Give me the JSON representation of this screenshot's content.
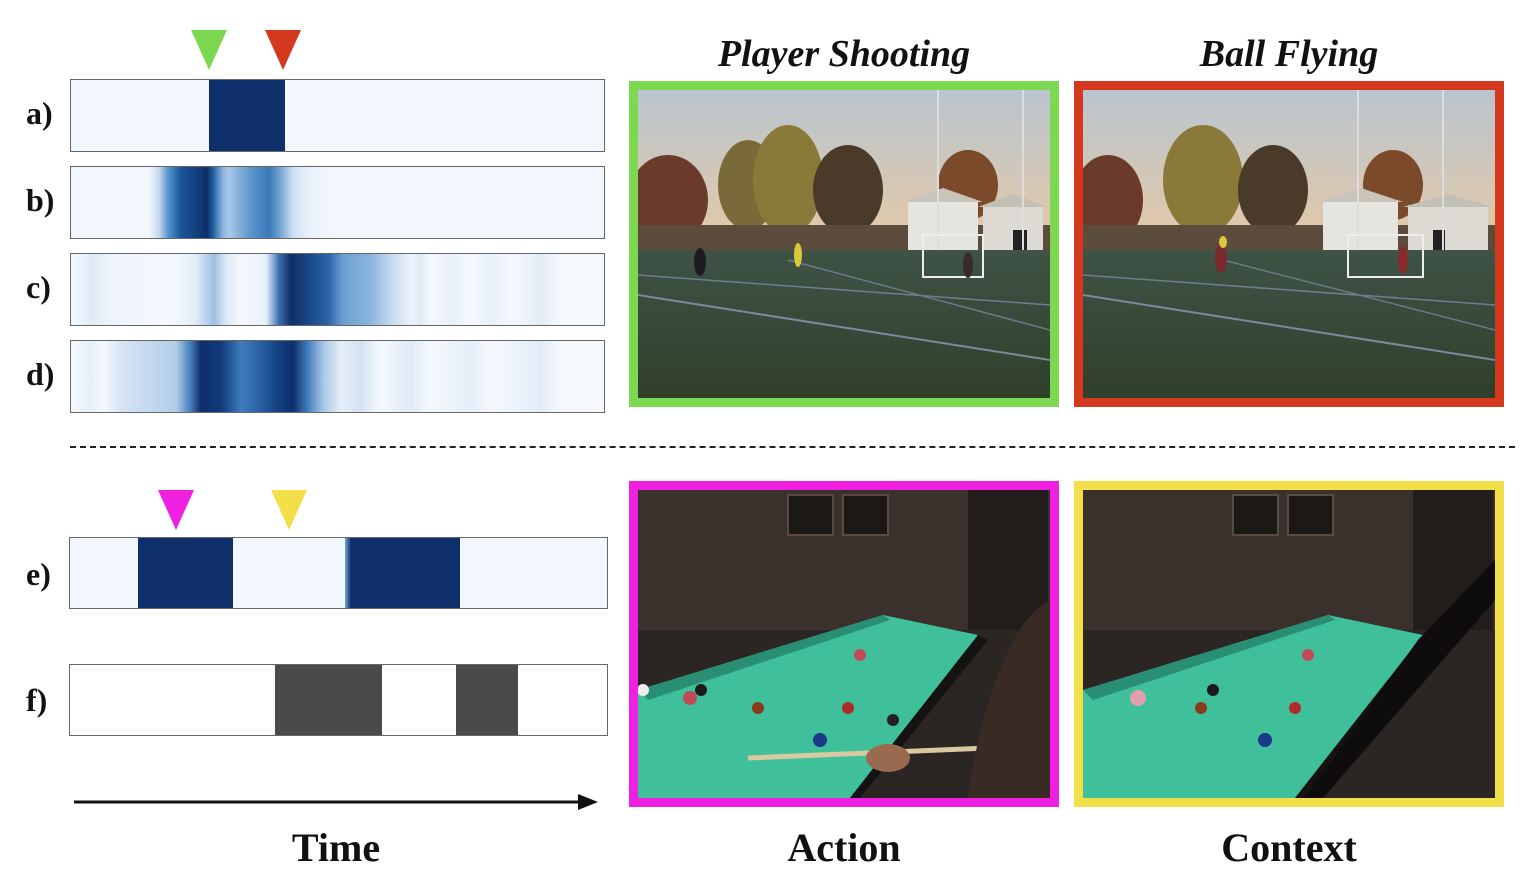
{
  "colors": {
    "dark_blue": "#0f2f6a",
    "light_blue_bg": "#f2f7fd",
    "gray_segment": "#4a4a4a",
    "green": "#7dd851",
    "red": "#d4391e",
    "magenta": "#f020e0",
    "yellow": "#f3df4a"
  },
  "top": {
    "rows": [
      {
        "label": "a)"
      },
      {
        "label": "b)"
      },
      {
        "label": "c)"
      },
      {
        "label": "d)"
      }
    ],
    "markers": [
      {
        "color": "green",
        "semantic": "shooting-marker"
      },
      {
        "color": "red",
        "semantic": "ball-flying-marker"
      }
    ],
    "frames": [
      {
        "title": "Player Shooting",
        "border_color": "green",
        "scene": "soccer field at sunset"
      },
      {
        "title": "Ball Flying",
        "border_color": "red",
        "scene": "soccer field at sunset"
      }
    ]
  },
  "bottom": {
    "rows": [
      {
        "label": "e)"
      },
      {
        "label": "f)"
      }
    ],
    "markers": [
      {
        "color": "magenta",
        "semantic": "action-marker"
      },
      {
        "color": "yellow",
        "semantic": "context-marker"
      }
    ],
    "frames": [
      {
        "caption": "Action",
        "border_color": "magenta",
        "scene": "pool table with player"
      },
      {
        "caption": "Context",
        "border_color": "yellow",
        "scene": "pool table"
      }
    ],
    "time_label": "Time"
  }
}
